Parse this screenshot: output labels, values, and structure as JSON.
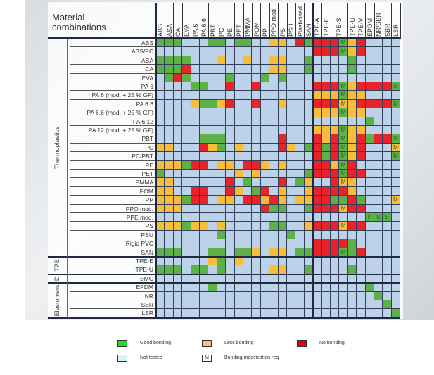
{
  "colors": {
    "G": "#5cb247",
    "O": "#f7bd3b",
    "R": "#e8232b",
    "B": "#bcd2e8",
    "M": "#5cb247",
    "N": "#f7bd3b",
    "P": "#5cb247",
    "S": "#5cb247"
  },
  "cell_letters": {
    "M": "M",
    "N": "M",
    "P": "P",
    "S": "S"
  },
  "chart_data": {
    "type": "table",
    "title": "Material combinations",
    "columns": [
      "ABS",
      "ASA",
      "CA",
      "EVA",
      "PA 6",
      "PA 6.6",
      "PBT",
      "PC",
      "PE",
      "PET",
      "PMMA",
      "POM",
      "PP",
      "PPO mod.",
      "PS",
      "PSU",
      "Plasticised",
      "SAN",
      "TPE-A",
      "TPE-E",
      "",
      "TPE-S",
      "TPE-U",
      "TPE-V",
      "EPDM",
      "NR/SBR",
      "SBR",
      "LSR"
    ],
    "groups": [
      {
        "label": "Thermoplastics",
        "from": 0,
        "to": 24
      },
      {
        "label": "TPE",
        "from": 25,
        "to": 26
      },
      {
        "label": "D",
        "from": 27,
        "to": 27
      },
      {
        "label": "Elastomers",
        "from": 28,
        "to": 31
      }
    ],
    "rows": [
      {
        "label": "ABS",
        "cells": "GGGBBBGGBGGBBOOBRGRRRMORBBBB"
      },
      {
        "label": "ABS/PC",
        "cells": "BBBBBBBBBBBBBBBBBBRRRMORBBBB"
      },
      {
        "label": "ASA",
        "cells": "GGGGBBBOBBOBBOOBBGBBBBGBBBBB"
      },
      {
        "label": "CA",
        "cells": "GGGRBBBBBBBBBOOBBGBBBBGBBBBB"
      },
      {
        "label": "EVA",
        "cells": "BGRGBBBBGBBBGBGBBBBBBBBBBBBB"
      },
      {
        "label": "PA 6",
        "cells": "BBBBGGBBRBBRBBBBBBRRRMORRRRM"
      },
      {
        "label": "PA 6 (mod. + 25 % GF)",
        "cells": "BBBBBBBBBBBBBBBBBBOOOMOOBBBB"
      },
      {
        "label": "PA 6.6",
        "cells": "BBBBOGGORBBRBBOBBBRRRNORRRRM"
      },
      {
        "label": "PA 6.6 (mod. + 25 % GF)",
        "cells": "BBBBBBBBBBBBBBBBBBOOOMOOBBBB"
      },
      {
        "label": "PA 6.12",
        "cells": "BBBBBBBBBBBBBBBBBBBBBBBBGBBB"
      },
      {
        "label": "PA 12 (mod. + 25 % GF)",
        "cells": "BBBBBBBBBBBBBBBBBBOOOMOOBBBB"
      },
      {
        "label": "PBT",
        "cells": "BBBBBGGGBBBBBBRBBBRORMORGRRM"
      },
      {
        "label": "PC",
        "cells": "OOBBBROGBOBBBBROBGRGRMORBBBN"
      },
      {
        "label": "PC/PBT",
        "cells": "BBBBBBBBBBBBBBBBBBRGRMORBBBM"
      },
      {
        "label": "PE",
        "cells": "OOOGRRBOOBRROBOBBBRROMRBBBBB"
      },
      {
        "label": "PET",
        "cells": "GBBBBBBBBOBOBBBBBGRRRMRRBBBB"
      },
      {
        "label": "PMMA",
        "cells": "OOBBBBBBRBGBBBRBGOBBRNOBBBBB"
      },
      {
        "label": "POM",
        "cells": "OOBBRRBBROBGRBOBBORRRROBBBBB"
      },
      {
        "label": "PP",
        "cells": "OOOGRRBOOBRROROBOORRGGRGBBBN"
      },
      {
        "label": "PPO mod.",
        "cells": "OOOBBBBBBBBBRGGBBGRRRNRRBBBB"
      },
      {
        "label": "PPE mod.",
        "cells": "BBBBBBBBBBBBBBBBBBBBBBBBPSSB"
      },
      {
        "label": "PS",
        "cells": "OOOGOOBOBBBBBGGBBORRRNRRBBBB"
      },
      {
        "label": "PSU",
        "cells": "BBBBBBBGBBBBBBBGBBBBBBBBBBBB"
      },
      {
        "label": "Rigid PVC",
        "cells": "BBBBBBBBBBBBBBBBBBRRRRGBBBBB"
      },
      {
        "label": "SAN",
        "cells": "GGGBBBGGBGGOBOOBGGRRRMGRBBBB"
      },
      {
        "label": "TPE-E",
        "cells": "BBBBBBOGBOBBBBBBBBBBBBBBBBBB"
      },
      {
        "label": "TPE-U",
        "cells": "GGGBGGBGBBBBBOOBBGBBBBGBBBBB"
      },
      {
        "label": "BMC",
        "cells": "BBBBBBBBBBBBBBBBBBBBBBBBBBBB"
      },
      {
        "label": "EPDM",
        "cells": "BBBBBBGBBBBBBBBBBBBBBBBBGBBB"
      },
      {
        "label": "NR",
        "cells": "BBBBBBBBBBBBBBBBBBBBBBBBBGBB"
      },
      {
        "label": "SBR",
        "cells": "BBBBBBBBBBBBBBBBBBBBBBBBBBGB"
      },
      {
        "label": "LSR",
        "cells": "BBBBBBBBBBBBBBBBBBBBBBBBBBBG"
      }
    ],
    "legend": [
      {
        "code": "G",
        "label": "Good bonding",
        "color": "#22dd22"
      },
      {
        "code": "O",
        "label": "Less bonding",
        "color": "#f8c08a"
      },
      {
        "code": "R",
        "label": "No bonding",
        "color": "#dd0000"
      },
      {
        "code": "B",
        "label": "Not tested",
        "color": "#d4f4f8"
      },
      {
        "code": "M",
        "label": "Bonding modification req.",
        "color": "#ffffff",
        "mark": "M"
      }
    ]
  }
}
